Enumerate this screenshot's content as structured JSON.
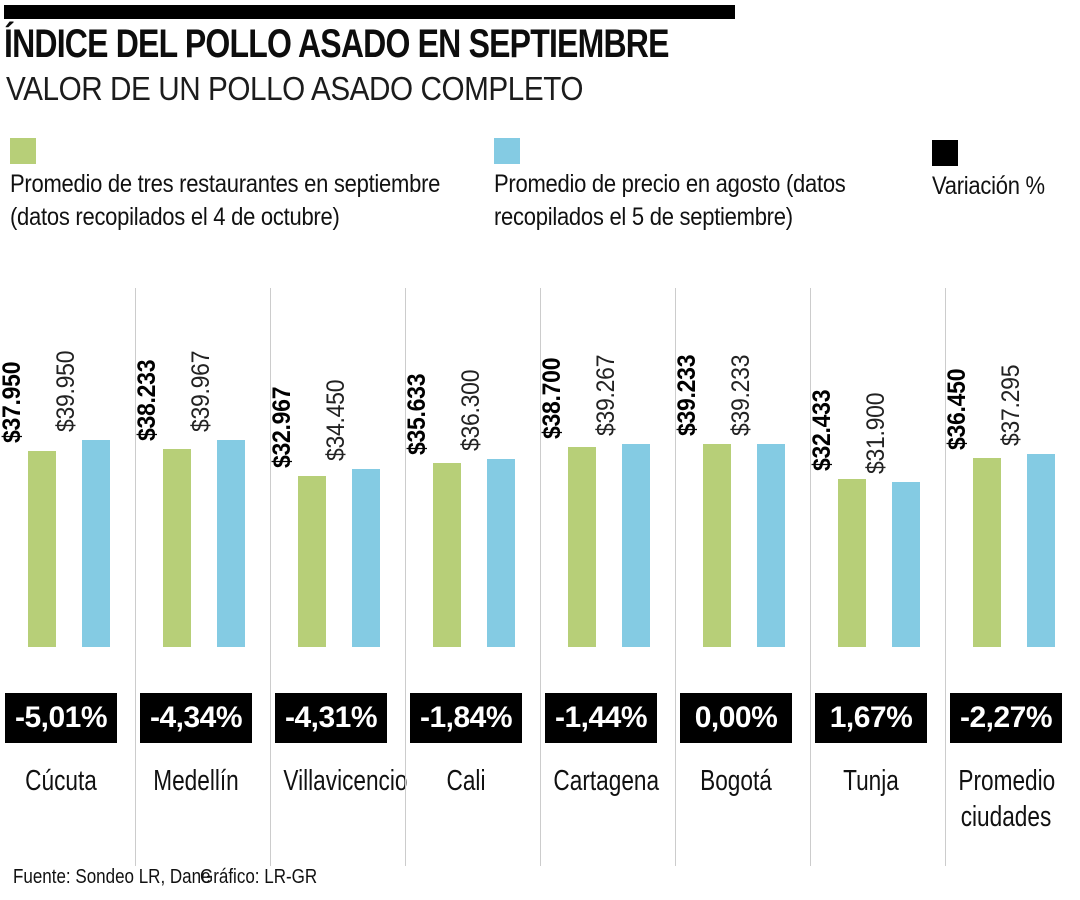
{
  "header": {
    "title": "ÍNDICE DEL POLLO ASADO EN SEPTIEMBRE",
    "subtitle": "VALOR DE UN POLLO ASADO COMPLETO"
  },
  "legend": {
    "september_label": "Promedio de tres restaurantes en septiembre (datos recopilados el 4 de octubre)",
    "august_label": "Promedio de precio en agosto (datos recopilados el 5 de septiembre)",
    "variation_label": "Variación %",
    "september_color": "#b7cf78",
    "august_color": "#84cbe3",
    "variation_color": "#000000"
  },
  "chart_data": {
    "type": "bar",
    "title": "ÍNDICE DEL POLLO ASADO EN SEPTIEMBRE",
    "subtitle": "VALOR DE UN POLLO ASADO COMPLETO",
    "categories": [
      "Cúcuta",
      "Medellín",
      "Villavicencio",
      "Cali",
      "Cartagena",
      "Bogotá",
      "Tunja",
      "Promedio ciudades"
    ],
    "series": [
      {
        "name": "Promedio de tres restaurantes en septiembre (datos recopilados el 4 de octubre)",
        "color": "#b7cf78",
        "values": [
          37950,
          38233,
          32967,
          35633,
          38700,
          39233,
          32433,
          36450
        ],
        "value_labels": [
          "$37.950",
          "$38.233",
          "$32.967",
          "$35.633",
          "$38.700",
          "$39.233",
          "$32.433",
          "$36.450"
        ]
      },
      {
        "name": "Promedio de precio en agosto (datos recopilados el 5 de septiembre)",
        "color": "#84cbe3",
        "values": [
          39950,
          39967,
          34450,
          36300,
          39267,
          39233,
          31900,
          37295
        ],
        "value_labels": [
          "$39.950",
          "$39.967",
          "$34.450",
          "$36.300",
          "$39.267",
          "$39.233",
          "$31.900",
          "$37.295"
        ]
      }
    ],
    "variation": [
      "-5,01%",
      "-4,34%",
      "-4,31%",
      "-1,84%",
      "-1,44%",
      "0,00%",
      "1,67%",
      "-2,27%"
    ],
    "ylim": [
      0,
      40000
    ],
    "grid": false,
    "legend_position": "top"
  },
  "footer": {
    "source": "Fuente: Sondeo LR, Dane",
    "credit": "Gráfico: LR-GR"
  }
}
